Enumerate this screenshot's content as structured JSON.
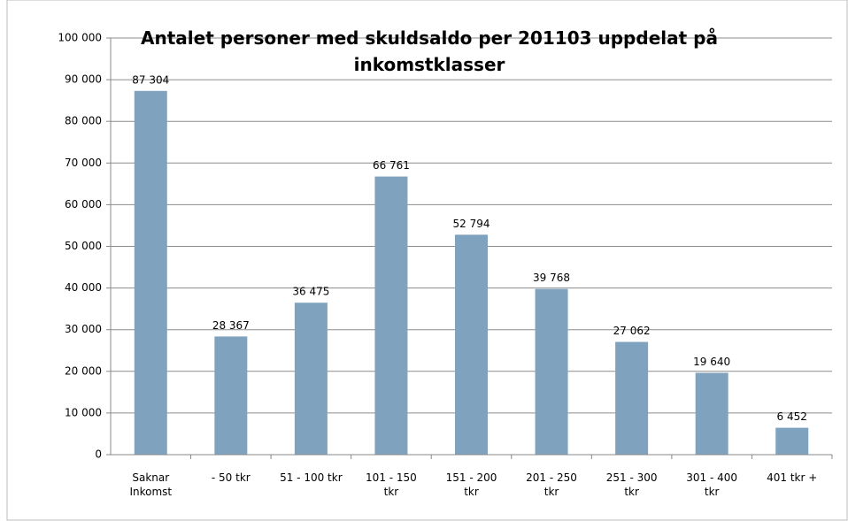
{
  "chart_data": {
    "type": "bar",
    "title": "Antalet personer med skuldsaldo  per 201103 uppdelat  på inkomstklasser",
    "categories": [
      "Saknar Inkomst",
      "- 50 tkr",
      "51 - 100 tkr",
      "101 - 150 tkr",
      "151 - 200 tkr",
      "201 - 250 tkr",
      "251 - 300 tkr",
      "301 - 400 tkr",
      "401 tkr +"
    ],
    "values": [
      87304,
      28367,
      36475,
      66761,
      52794,
      39768,
      27062,
      19640,
      6452
    ],
    "value_labels": [
      "87 304",
      "28 367",
      "36 475",
      "66 761",
      "52 794",
      "39 768",
      "27 062",
      "19 640",
      "6 452"
    ],
    "color": "#7fa3bf",
    "ylim": [
      0,
      100000
    ],
    "yticks": [
      0,
      {
        "value": 10000,
        "label": "10 000"
      },
      {
        "value": 20000,
        "label": "20 000"
      },
      {
        "value": 30000,
        "label": "30 000"
      },
      {
        "value": 40000,
        "label": "40 000"
      },
      {
        "value": 50000,
        "label": "50 000"
      },
      {
        "value": 60000,
        "label": "60 000"
      },
      {
        "value": 70000,
        "label": "70 000"
      },
      {
        "value": 80000,
        "label": "80 000"
      },
      {
        "value": 90000,
        "label": "90 000"
      },
      {
        "value": 100000,
        "label": "100 000"
      }
    ],
    "grid": true
  }
}
